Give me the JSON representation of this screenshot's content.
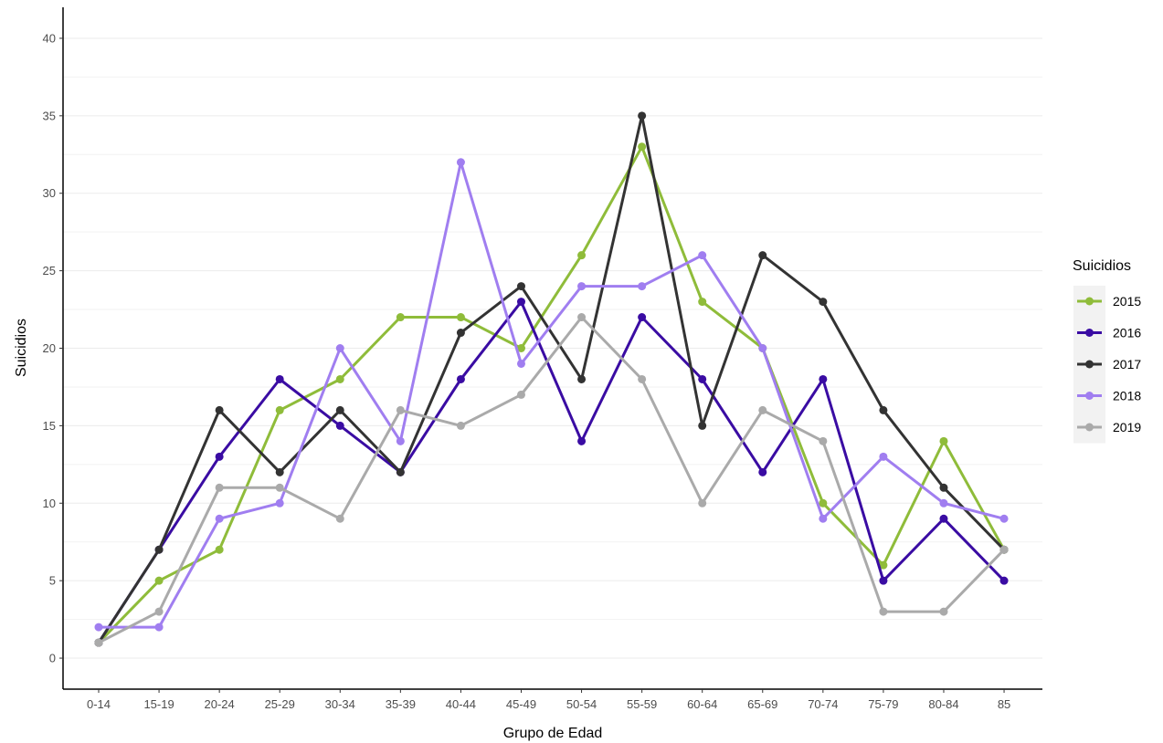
{
  "chart_data": {
    "type": "line",
    "title": "",
    "xlabel": "Grupo de Edad",
    "ylabel": "Suicidios",
    "ylim": [
      -2,
      42
    ],
    "yticks": [
      0,
      5,
      10,
      15,
      20,
      25,
      30,
      35,
      40
    ],
    "categories": [
      "0-14",
      "15-19",
      "20-24",
      "25-29",
      "30-34",
      "35-39",
      "40-44",
      "45-49",
      "50-54",
      "55-59",
      "60-64",
      "65-69",
      "70-74",
      "75-79",
      "80-84",
      "85"
    ],
    "legend": {
      "title": "Suicidios",
      "position": "right"
    },
    "grid": "horizontal major and minor lines only",
    "series": [
      {
        "name": "2015",
        "color": "#8fbc3a",
        "values": [
          1,
          5,
          7,
          16,
          18,
          22,
          22,
          20,
          26,
          33,
          23,
          20,
          10,
          6,
          14,
          7
        ]
      },
      {
        "name": "2016",
        "color": "#3a0ca3",
        "values": [
          1,
          7,
          13,
          18,
          15,
          12,
          18,
          23,
          14,
          22,
          18,
          12,
          18,
          5,
          9,
          5
        ]
      },
      {
        "name": "2017",
        "color": "#333333",
        "values": [
          1,
          7,
          16,
          12,
          16,
          12,
          21,
          24,
          18,
          35,
          15,
          26,
          23,
          16,
          11,
          7
        ]
      },
      {
        "name": "2018",
        "color": "#a07ef0",
        "values": [
          2,
          2,
          9,
          10,
          20,
          14,
          32,
          19,
          24,
          24,
          26,
          20,
          9,
          13,
          10,
          9
        ]
      },
      {
        "name": "2019",
        "color": "#aaaaaa",
        "values": [
          1,
          3,
          11,
          11,
          9,
          16,
          15,
          17,
          22,
          18,
          10,
          16,
          14,
          3,
          3,
          7
        ]
      }
    ]
  }
}
